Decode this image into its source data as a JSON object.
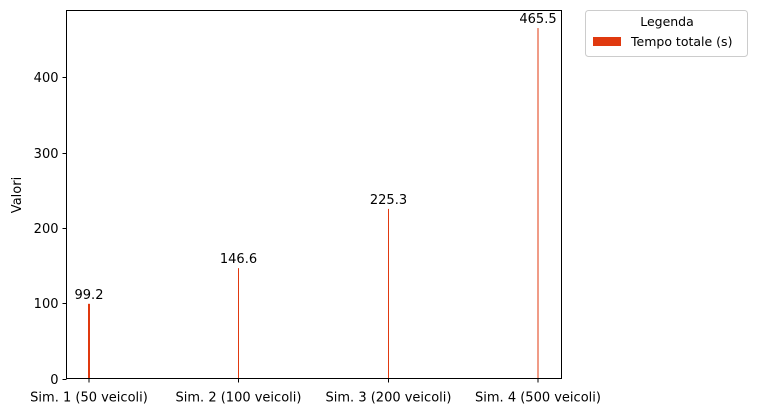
{
  "chart_data": {
    "type": "bar",
    "categories": [
      "Sim. 1 (50 veicoli)",
      "Sim. 2 (100 veicoli)",
      "Sim. 3 (200 veicoli)",
      "Sim. 4 (500 veicoli)"
    ],
    "series": [
      {
        "name": "Tempo totale (s)",
        "values": [
          99.2,
          146.6,
          225.3,
          465.5
        ],
        "color": "#e0390f"
      }
    ],
    "data_labels": [
      "99.2",
      "146.6",
      "225.3",
      "465.5"
    ],
    "title": "",
    "xlabel": "",
    "ylabel": "Valori",
    "ylim": [
      0,
      488.8
    ],
    "yticks": [
      0,
      100,
      200,
      300,
      400
    ],
    "grid": false,
    "legend": {
      "title": "Legenda",
      "placement": "outside-top-right"
    }
  }
}
